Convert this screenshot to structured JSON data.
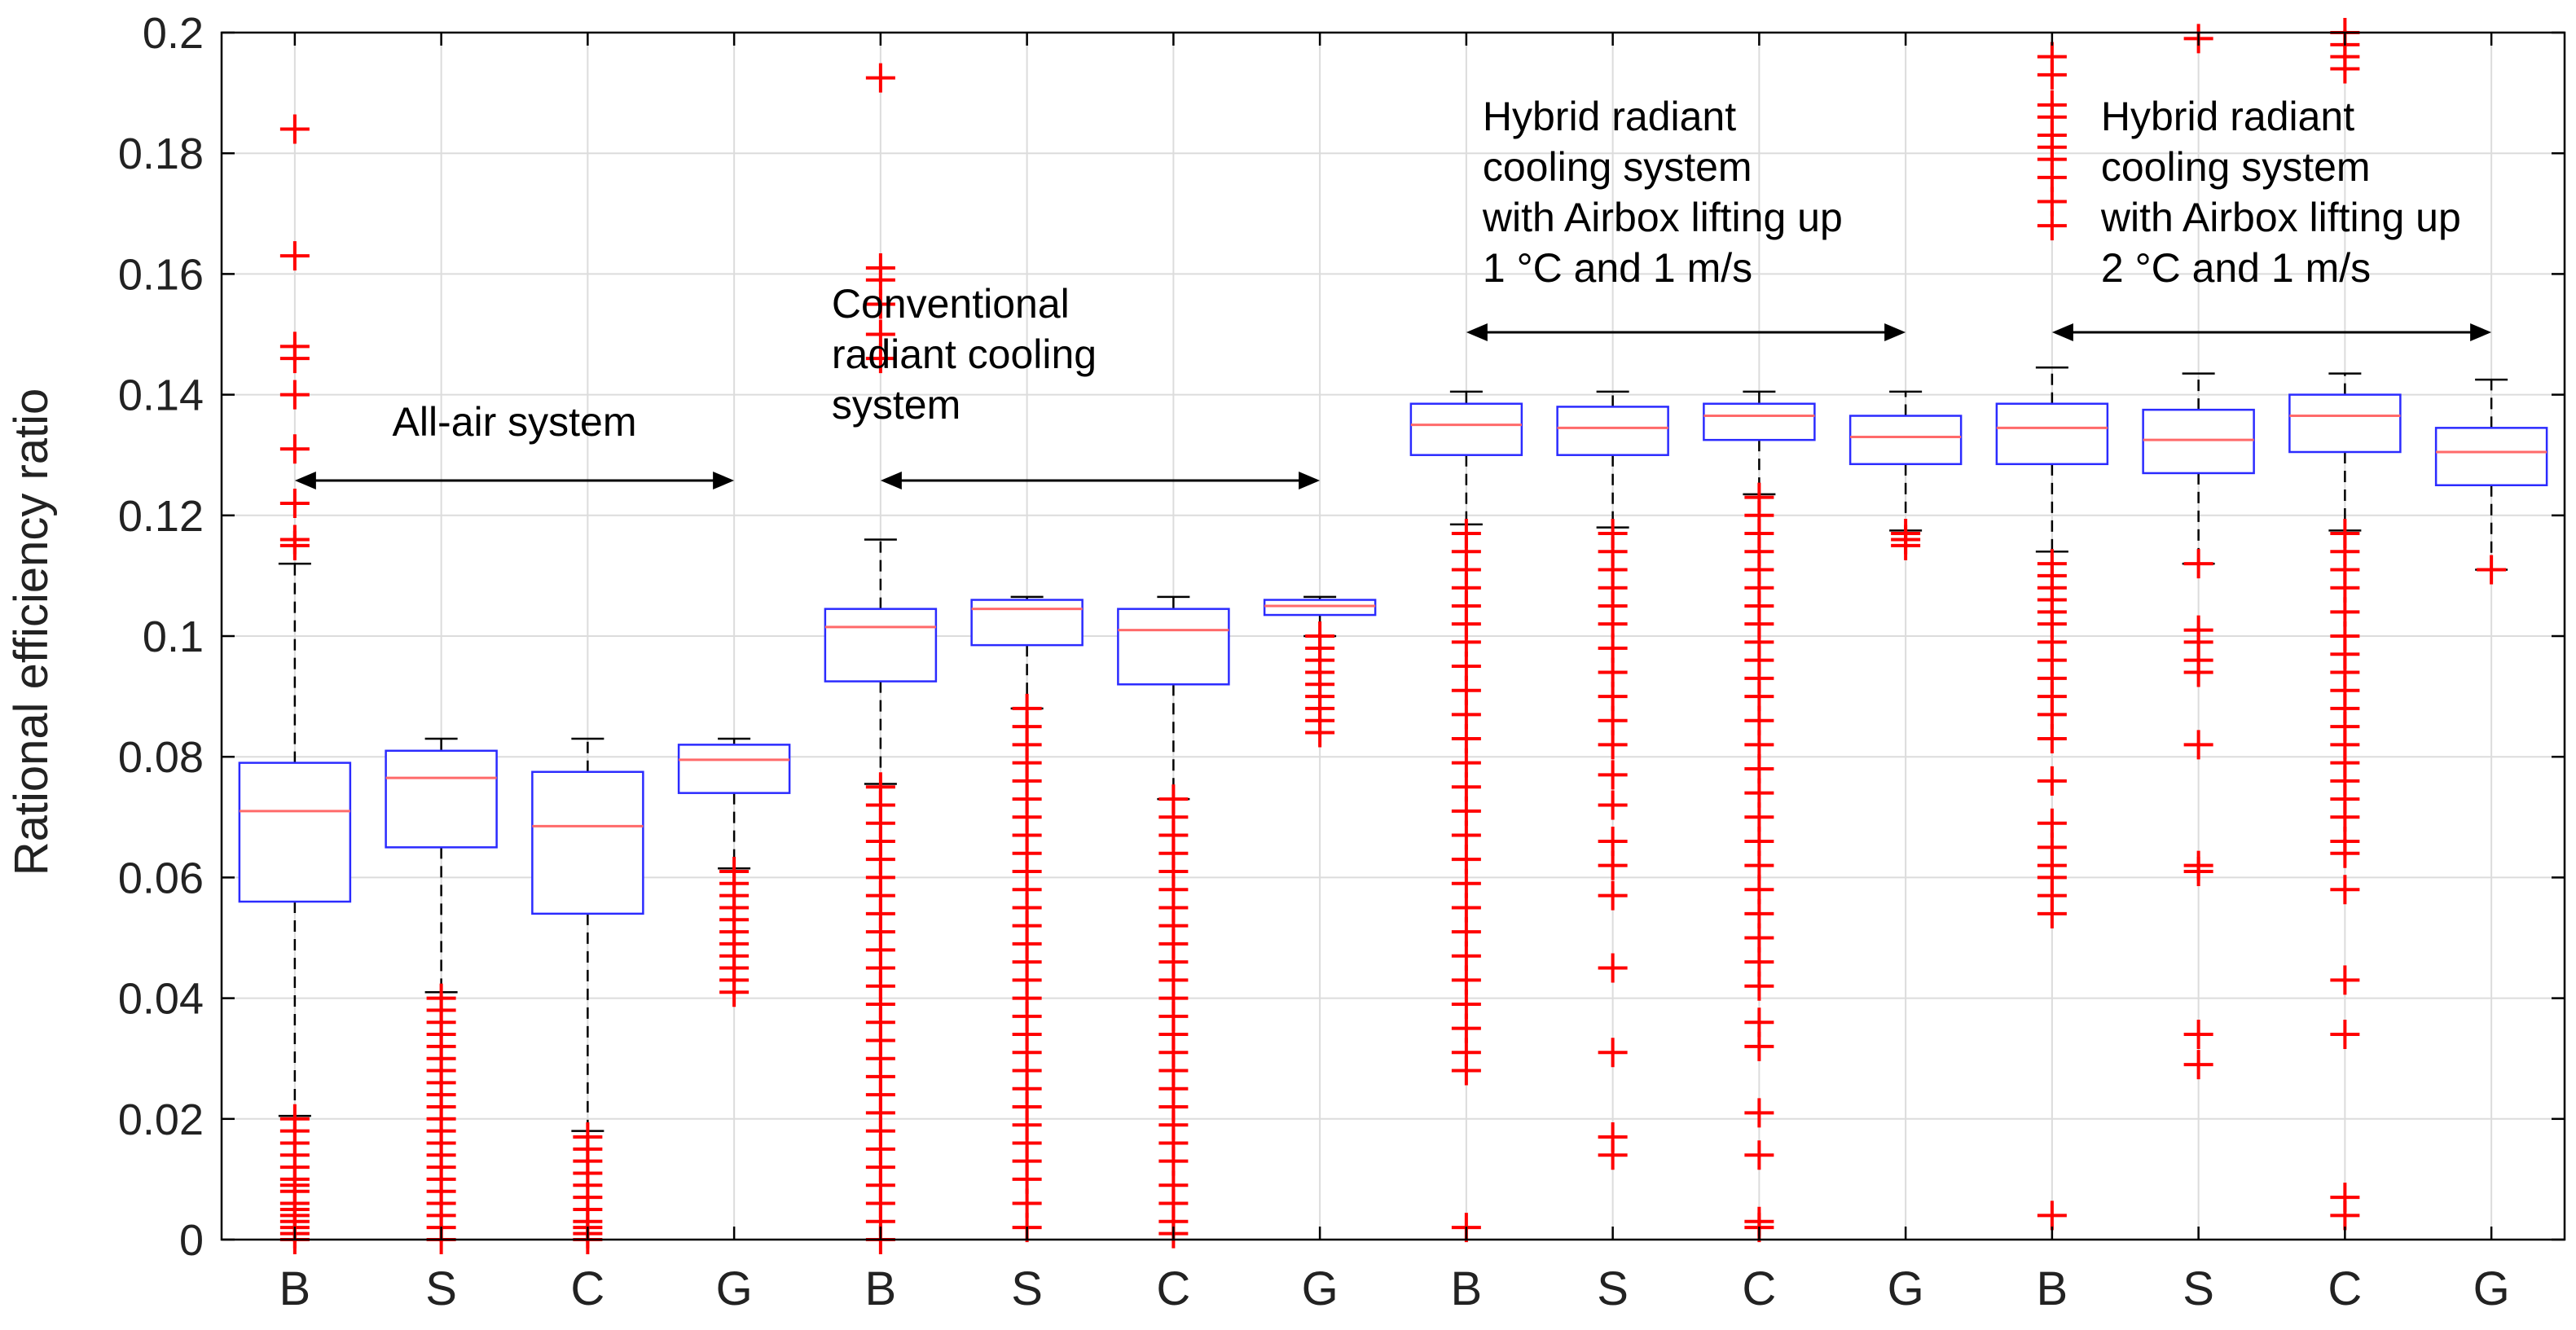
{
  "chart_data": {
    "type": "box",
    "ylabel": "Rational efficiency ratio",
    "ylim": [
      0,
      0.2
    ],
    "yticks": [
      "0",
      "0.02",
      "0.04",
      "0.06",
      "0.08",
      "0.1",
      "0.12",
      "0.14",
      "0.16",
      "0.18",
      "0.2"
    ],
    "grid": true,
    "colors": {
      "box": "#2b2bff",
      "median": "#ff6a6a",
      "outlier": "#ff0000",
      "whisker": "#000000",
      "grid": "#dcdcdc",
      "arrow": "#000000"
    },
    "groups": [
      {
        "name": "All-air system",
        "label_lines": [
          "All-air system"
        ],
        "boxes": [
          {
            "category": "B",
            "q1": 0.056,
            "median": 0.071,
            "q3": 0.079,
            "lower_whisker": 0.0205,
            "upper_whisker": 0.112,
            "outliers": [
              0.184,
              0.163,
              0.148,
              0.146,
              0.14,
              0.131,
              0.122,
              0.116,
              0.115,
              0.02,
              0.018,
              0.016,
              0.014,
              0.012,
              0.01,
              0.009,
              0.008,
              0.006,
              0.005,
              0.004,
              0.003,
              0.002,
              0.001,
              0.0
            ]
          },
          {
            "category": "S",
            "q1": 0.065,
            "median": 0.0765,
            "q3": 0.081,
            "lower_whisker": 0.041,
            "upper_whisker": 0.083,
            "outliers": [
              0.04,
              0.038,
              0.036,
              0.034,
              0.032,
              0.03,
              0.028,
              0.026,
              0.024,
              0.022,
              0.02,
              0.018,
              0.016,
              0.014,
              0.012,
              0.01,
              0.008,
              0.006,
              0.004,
              0.002,
              0.0
            ]
          },
          {
            "category": "C",
            "q1": 0.054,
            "median": 0.0685,
            "q3": 0.0775,
            "lower_whisker": 0.018,
            "upper_whisker": 0.083,
            "outliers": [
              0.017,
              0.015,
              0.013,
              0.011,
              0.009,
              0.007,
              0.005,
              0.003,
              0.002,
              0.001,
              0.0
            ]
          },
          {
            "category": "G",
            "q1": 0.074,
            "median": 0.0795,
            "q3": 0.082,
            "lower_whisker": 0.0615,
            "upper_whisker": 0.083,
            "outliers": [
              0.061,
              0.059,
              0.057,
              0.055,
              0.053,
              0.051,
              0.049,
              0.047,
              0.045,
              0.043,
              0.041
            ]
          }
        ]
      },
      {
        "name": "Conventional radiant cooling system",
        "label_lines": [
          "Conventional",
          "radiant cooling",
          "system"
        ],
        "boxes": [
          {
            "category": "B",
            "q1": 0.0925,
            "median": 0.1015,
            "q3": 0.1045,
            "lower_whisker": 0.0755,
            "upper_whisker": 0.116,
            "outliers": [
              0.1925,
              0.161,
              0.159,
              0.155,
              0.15,
              0.146,
              0.075,
              0.072,
              0.069,
              0.066,
              0.063,
              0.06,
              0.057,
              0.054,
              0.051,
              0.048,
              0.045,
              0.042,
              0.039,
              0.036,
              0.033,
              0.03,
              0.027,
              0.024,
              0.021,
              0.018,
              0.015,
              0.012,
              0.009,
              0.006,
              0.003,
              0.0
            ]
          },
          {
            "category": "S",
            "q1": 0.0985,
            "median": 0.1045,
            "q3": 0.106,
            "lower_whisker": 0.088,
            "upper_whisker": 0.1065,
            "outliers": [
              0.088,
              0.085,
              0.082,
              0.079,
              0.076,
              0.073,
              0.07,
              0.067,
              0.064,
              0.061,
              0.058,
              0.055,
              0.052,
              0.049,
              0.046,
              0.043,
              0.04,
              0.037,
              0.034,
              0.031,
              0.028,
              0.025,
              0.022,
              0.019,
              0.016,
              0.013,
              0.01,
              0.006,
              0.002
            ]
          },
          {
            "category": "C",
            "q1": 0.092,
            "median": 0.101,
            "q3": 0.1045,
            "lower_whisker": 0.073,
            "upper_whisker": 0.1065,
            "outliers": [
              0.073,
              0.07,
              0.067,
              0.064,
              0.061,
              0.058,
              0.055,
              0.052,
              0.049,
              0.046,
              0.043,
              0.04,
              0.037,
              0.034,
              0.031,
              0.028,
              0.025,
              0.022,
              0.019,
              0.016,
              0.013,
              0.009,
              0.006,
              0.003,
              0.001
            ]
          },
          {
            "category": "G",
            "q1": 0.1035,
            "median": 0.105,
            "q3": 0.106,
            "lower_whisker": 0.1,
            "upper_whisker": 0.1065,
            "outliers": [
              0.1,
              0.098,
              0.096,
              0.094,
              0.092,
              0.09,
              0.088,
              0.086,
              0.084
            ]
          }
        ]
      },
      {
        "name": "Hybrid radiant cooling system with Airbox lifting up 1 °C and 1 m/s",
        "label_lines": [
          "Hybrid radiant",
          "cooling system",
          "with Airbox lifting up",
          "1 °C and 1 m/s"
        ],
        "boxes": [
          {
            "category": "B",
            "q1": 0.13,
            "median": 0.135,
            "q3": 0.1385,
            "lower_whisker": 0.1185,
            "upper_whisker": 0.1405,
            "outliers": [
              0.117,
              0.114,
              0.111,
              0.108,
              0.105,
              0.102,
              0.099,
              0.095,
              0.091,
              0.087,
              0.083,
              0.079,
              0.075,
              0.071,
              0.067,
              0.063,
              0.059,
              0.055,
              0.051,
              0.047,
              0.043,
              0.039,
              0.035,
              0.031,
              0.028,
              0.002
            ]
          },
          {
            "category": "S",
            "q1": 0.13,
            "median": 0.1345,
            "q3": 0.138,
            "lower_whisker": 0.118,
            "upper_whisker": 0.1405,
            "outliers": [
              0.117,
              0.114,
              0.111,
              0.108,
              0.105,
              0.102,
              0.098,
              0.094,
              0.09,
              0.086,
              0.082,
              0.077,
              0.072,
              0.066,
              0.062,
              0.057,
              0.045,
              0.031,
              0.017,
              0.014
            ]
          },
          {
            "category": "C",
            "q1": 0.1325,
            "median": 0.1365,
            "q3": 0.1385,
            "lower_whisker": 0.1235,
            "upper_whisker": 0.1405,
            "outliers": [
              0.123,
              0.12,
              0.117,
              0.114,
              0.111,
              0.108,
              0.105,
              0.102,
              0.099,
              0.096,
              0.093,
              0.09,
              0.086,
              0.082,
              0.078,
              0.074,
              0.07,
              0.066,
              0.062,
              0.058,
              0.054,
              0.05,
              0.046,
              0.042,
              0.036,
              0.032,
              0.021,
              0.014,
              0.003,
              0.002
            ]
          },
          {
            "category": "G",
            "q1": 0.1285,
            "median": 0.133,
            "q3": 0.1365,
            "lower_whisker": 0.1175,
            "upper_whisker": 0.1405,
            "outliers": [
              0.117,
              0.116,
              0.115
            ]
          }
        ]
      },
      {
        "name": "Hybrid radiant cooling system with Airbox lifting up 2 °C and 1 m/s",
        "label_lines": [
          "Hybrid radiant",
          "cooling system",
          "with Airbox lifting up",
          "2 °C and 1 m/s"
        ],
        "boxes": [
          {
            "category": "B",
            "q1": 0.1285,
            "median": 0.1345,
            "q3": 0.1385,
            "lower_whisker": 0.114,
            "upper_whisker": 0.1445,
            "outliers": [
              0.196,
              0.193,
              0.188,
              0.186,
              0.183,
              0.181,
              0.179,
              0.176,
              0.172,
              0.168,
              0.112,
              0.11,
              0.108,
              0.106,
              0.104,
              0.102,
              0.099,
              0.096,
              0.093,
              0.09,
              0.087,
              0.083,
              0.076,
              0.069,
              0.065,
              0.062,
              0.06,
              0.057,
              0.054,
              0.004
            ]
          },
          {
            "category": "S",
            "q1": 0.127,
            "median": 0.1325,
            "q3": 0.1375,
            "lower_whisker": 0.112,
            "upper_whisker": 0.1435,
            "outliers": [
              0.199,
              0.112,
              0.101,
              0.099,
              0.096,
              0.094,
              0.082,
              0.062,
              0.061,
              0.034,
              0.029
            ]
          },
          {
            "category": "C",
            "q1": 0.1305,
            "median": 0.1365,
            "q3": 0.14,
            "lower_whisker": 0.1175,
            "upper_whisker": 0.1435,
            "outliers": [
              0.2,
              0.198,
              0.196,
              0.194,
              0.117,
              0.114,
              0.111,
              0.108,
              0.104,
              0.1,
              0.097,
              0.094,
              0.091,
              0.088,
              0.085,
              0.082,
              0.079,
              0.076,
              0.073,
              0.07,
              0.066,
              0.064,
              0.058,
              0.043,
              0.034,
              0.007,
              0.004
            ]
          },
          {
            "category": "G",
            "q1": 0.125,
            "median": 0.1305,
            "q3": 0.1345,
            "lower_whisker": 0.111,
            "upper_whisker": 0.1425,
            "outliers": [
              0.111
            ]
          }
        ]
      }
    ]
  }
}
